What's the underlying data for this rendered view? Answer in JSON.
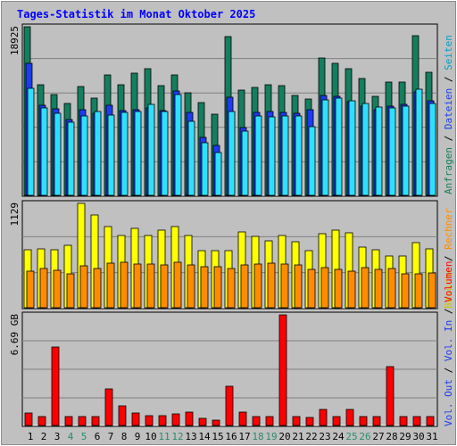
{
  "title": "Tages-Statistik im Monat Oktober 2025",
  "colors": {
    "background": "#c0c0c0",
    "frame_dark": "#8c8c8c",
    "grid": "#808080",
    "title": "#0000ff",
    "hits": "#157e5e",
    "files": "#1c3cf0",
    "pages": "#2ee0ff",
    "visits": "#ffff00",
    "sites": "#ff8c00",
    "volume": "#ff0000",
    "weekend_day": "#2c8a6a",
    "weekday": "#000000"
  },
  "legend": {
    "top": [
      {
        "label": "Anfragen",
        "color": "#157e5e"
      },
      {
        "label": "Dateien",
        "color": "#1c3cf0"
      },
      {
        "label": "Seiten",
        "color": "#00a0c8"
      }
    ],
    "mid": [
      {
        "label": "Besuche",
        "color": "#c8c800"
      },
      {
        "label": "Rechner",
        "color": "#ff8c00"
      }
    ],
    "bottom": [
      {
        "label": "Vol. Out",
        "color": "#1c3cf0"
      },
      {
        "label": "Vol. In",
        "color": "#1c3cf0"
      },
      {
        "label": "Volumen",
        "color": "#ff0000"
      }
    ],
    "separator": " / ",
    "separator_color": "#000000"
  },
  "chart_data": [
    {
      "type": "bar",
      "panel": "requests",
      "y_max_label": "18925",
      "ylim": [
        0,
        18925
      ],
      "categories": [
        "1",
        "2",
        "3",
        "4",
        "5",
        "6",
        "7",
        "8",
        "9",
        "10",
        "11",
        "12",
        "13",
        "14",
        "15",
        "16",
        "17",
        "18",
        "19",
        "20",
        "21",
        "22",
        "23",
        "24",
        "25",
        "26",
        "27",
        "28",
        "29",
        "30",
        "31"
      ],
      "weekend_days": [
        4,
        5,
        11,
        12,
        18,
        19,
        25,
        26
      ],
      "series": [
        {
          "name": "Anfragen",
          "values": [
            18925,
            12400,
            11350,
            10350,
            12200,
            10950,
            13550,
            12400,
            13750,
            14250,
            12350,
            13500,
            11550,
            10450,
            9150,
            17800,
            11850,
            12150,
            12450,
            12300,
            11250,
            10850,
            15400,
            14800,
            14250,
            13100,
            11150,
            12750,
            12700,
            17900,
            13800
          ]
        },
        {
          "name": "Dateien",
          "values": [
            14800,
            10100,
            9700,
            8500,
            9600,
            9200,
            10100,
            9500,
            9600,
            9800,
            9500,
            11700,
            9300,
            6500,
            5600,
            11000,
            7600,
            9300,
            9400,
            9300,
            9200,
            9600,
            11250,
            11100,
            10500,
            10000,
            9600,
            10000,
            10200,
            11600,
            10600
          ]
        },
        {
          "name": "Seiten",
          "values": [
            12000,
            9800,
            9200,
            8200,
            8900,
            9400,
            9000,
            9300,
            9400,
            10200,
            9400,
            11300,
            8300,
            5900,
            4800,
            9400,
            7200,
            8900,
            8800,
            8900,
            8900,
            7700,
            10700,
            10900,
            10600,
            10300,
            9900,
            9800,
            10000,
            11900,
            10300
          ]
        }
      ]
    },
    {
      "type": "bar",
      "panel": "visits",
      "y_max_label": "1129",
      "ylim": [
        0,
        1129
      ],
      "series": [
        {
          "name": "Besuche",
          "values": [
            628,
            636,
            631,
            677,
            1129,
            1003,
            878,
            781,
            856,
            780,
            840,
            879,
            779,
            622,
            622,
            619,
            824,
            770,
            725,
            779,
            712,
            619,
            803,
            836,
            810,
            654,
            624,
            557,
            559,
            704,
            641
          ]
        },
        {
          "name": "Rechner",
          "values": [
            397,
            427,
            407,
            367,
            450,
            428,
            484,
            490,
            477,
            474,
            468,
            491,
            468,
            445,
            447,
            426,
            463,
            474,
            478,
            473,
            459,
            411,
            431,
            419,
            400,
            435,
            418,
            427,
            369,
            369,
            378
          ]
        }
      ]
    },
    {
      "type": "bar",
      "panel": "volume",
      "y_max_label": "6.69 GB",
      "ylim": [
        0,
        6.69
      ],
      "series": [
        {
          "name": "Volumen",
          "values": [
            0.75,
            0.55,
            4.75,
            0.55,
            0.55,
            0.55,
            2.2,
            1.2,
            0.75,
            0.62,
            0.6,
            0.7,
            0.82,
            0.45,
            0.35,
            2.4,
            0.82,
            0.55,
            0.55,
            6.69,
            0.55,
            0.5,
            0.95,
            0.55,
            0.95,
            0.55,
            0.55,
            3.55,
            0.55,
            0.55,
            0.55
          ]
        }
      ]
    }
  ]
}
